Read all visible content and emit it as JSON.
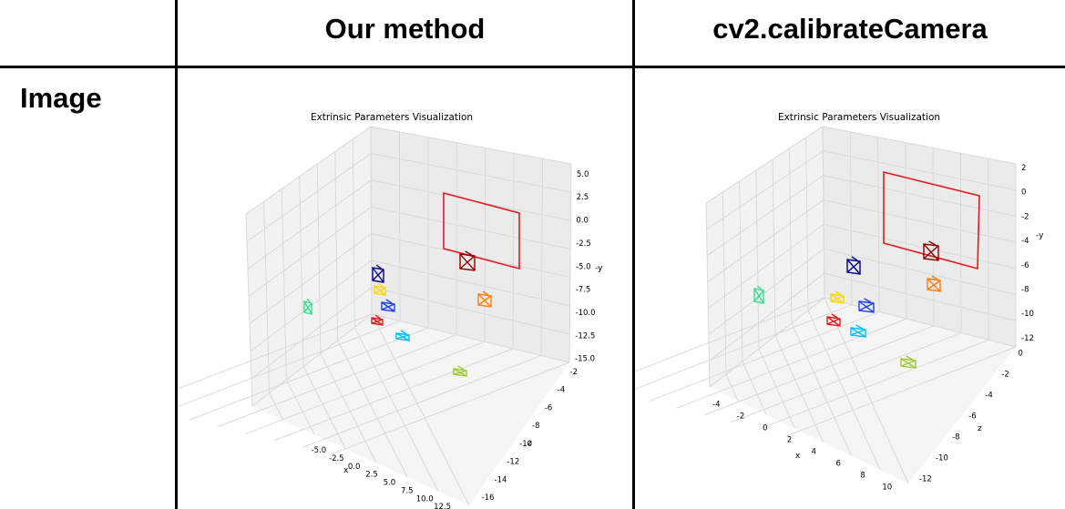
{
  "table": {
    "column_headers": [
      "Our method",
      "cv2.calibrateCamera"
    ],
    "row_label": "Image"
  },
  "chart_data": [
    {
      "type": "scatter",
      "title": "Extrinsic Parameters Visualization",
      "xlabel": "x",
      "ylabel": "-y",
      "zlabel": "z",
      "x_ticks": [
        "-5.0",
        "-2.5",
        "0.0",
        "2.5",
        "5.0",
        "7.5",
        "10.0",
        "12.5"
      ],
      "y_ticks": [
        "5.0",
        "2.5",
        "0.0",
        "-2.5",
        "-5.0",
        "-7.5",
        "-10.0",
        "-12.5",
        "-15.0"
      ],
      "z_ticks": [
        "-2",
        "-4",
        "-6",
        "-8",
        "-10",
        "-12",
        "-14",
        "-16"
      ],
      "grid": true,
      "board_color": "#e41a1c",
      "camera_colors": [
        "#8b0000",
        "#00008b",
        "#ffd700",
        "#1f3fff",
        "#e41a1c",
        "#00bfff",
        "#3cdc8c",
        "#ff7f0e",
        "#9acd32"
      ]
    },
    {
      "type": "scatter",
      "title": "Extrinsic Parameters Visualization",
      "xlabel": "x",
      "ylabel": "-y",
      "zlabel": "z",
      "x_ticks": [
        "-4",
        "-2",
        "0",
        "2",
        "4",
        "6",
        "8",
        "10"
      ],
      "y_ticks": [
        "2",
        "0",
        "-2",
        "-4",
        "-6",
        "-8",
        "-10",
        "-12"
      ],
      "z_ticks": [
        "0",
        "-2",
        "-4",
        "-6",
        "-8",
        "-10",
        "-12"
      ],
      "grid": true,
      "board_color": "#e41a1c",
      "camera_colors": [
        "#8b0000",
        "#00008b",
        "#ffd700",
        "#1f3fff",
        "#e41a1c",
        "#00bfff",
        "#3cdc8c",
        "#ff7f0e",
        "#9acd32"
      ]
    }
  ]
}
